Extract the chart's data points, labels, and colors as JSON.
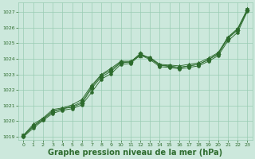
{
  "background_color": "#cce8dc",
  "grid_color": "#99ccb3",
  "line_color": "#2d6b2d",
  "marker_color": "#2d6b2d",
  "title": "Graphe pression niveau de la mer (hPa)",
  "title_fontsize": 7,
  "title_bold": true,
  "xlabel_color": "#2d6b2d",
  "ylim": [
    1018.8,
    1027.6
  ],
  "xlim": [
    -0.5,
    23.5
  ],
  "yticks": [
    1019,
    1020,
    1021,
    1022,
    1023,
    1024,
    1025,
    1026,
    1027
  ],
  "xticks": [
    0,
    1,
    2,
    3,
    4,
    5,
    6,
    7,
    8,
    9,
    10,
    11,
    12,
    13,
    14,
    15,
    16,
    17,
    18,
    19,
    20,
    21,
    22,
    23
  ],
  "series": [
    {
      "values": [
        1019.1,
        1019.8,
        1020.2,
        1020.75,
        1020.85,
        1021.05,
        1021.4,
        1022.3,
        1023.0,
        1023.4,
        1023.85,
        1023.85,
        1024.2,
        1024.1,
        1023.65,
        1023.6,
        1023.55,
        1023.65,
        1023.75,
        1024.05,
        1024.4,
        1025.4,
        1025.95,
        1027.2
      ],
      "marker": "^",
      "markersize": 3.5
    },
    {
      "values": [
        1019.05,
        1019.65,
        1020.1,
        1020.6,
        1020.8,
        1020.9,
        1021.15,
        1022.1,
        1022.85,
        1023.2,
        1023.75,
        1023.8,
        1024.35,
        1024.0,
        1023.6,
        1023.5,
        1023.45,
        1023.55,
        1023.65,
        1023.95,
        1024.3,
        1025.3,
        1025.85,
        1027.1
      ],
      "marker": "D",
      "markersize": 2.8
    },
    {
      "values": [
        1019.0,
        1019.55,
        1020.05,
        1020.5,
        1020.7,
        1020.8,
        1021.05,
        1021.85,
        1022.7,
        1023.05,
        1023.65,
        1023.7,
        1024.25,
        1023.95,
        1023.5,
        1023.45,
        1023.35,
        1023.45,
        1023.55,
        1023.85,
        1024.2,
        1025.15,
        1025.7,
        1027.05
      ],
      "marker": "o",
      "markersize": 2.8
    },
    {
      "values": [
        1019.1,
        1019.7,
        1020.15,
        1020.65,
        1020.8,
        1020.95,
        1021.25,
        1022.2,
        1022.95,
        1023.3,
        1023.8,
        1023.8,
        1024.3,
        1024.05,
        1023.6,
        1023.55,
        1023.45,
        1023.55,
        1023.65,
        1023.95,
        1024.35,
        1025.35,
        1025.9,
        1027.15
      ],
      "marker": "s",
      "markersize": 2.8
    }
  ]
}
